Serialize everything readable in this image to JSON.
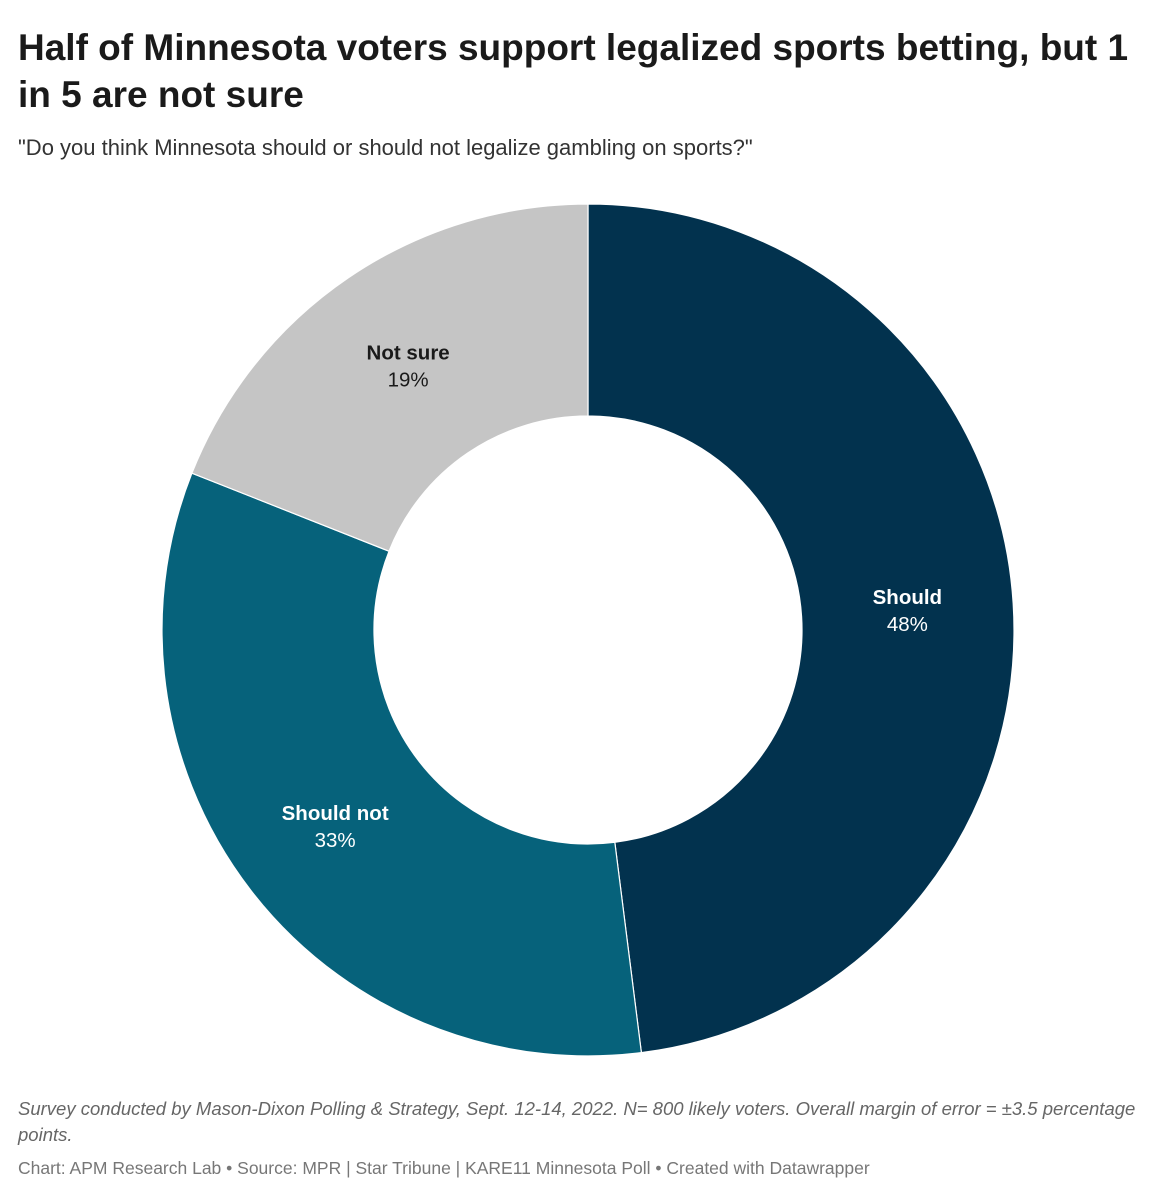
{
  "title": "Half of Minnesota voters support legalized sports betting, but 1 in 5 are not sure",
  "subtitle": "\"Do you think Minnesota should or should not legalize gambling on sports?\"",
  "note": "Survey conducted by Mason-Dixon Polling & Strategy, Sept. 12-14, 2022. N= 800 likely voters. Overall margin of error = ±3.5 percentage points.",
  "credits": "Chart: APM Research Lab • Source: MPR | Star Tribune | KARE11 Minnesota Poll • Created with Datawrapper",
  "chart_data": {
    "type": "pie",
    "variant": "donut",
    "start": "12 o'clock, clockwise",
    "slices": [
      {
        "label": "Should",
        "value": 48,
        "display": "48%",
        "color": "#02324e",
        "label_color": "#ffffff"
      },
      {
        "label": "Should not",
        "value": 33,
        "display": "33%",
        "color": "#06627b",
        "label_color": "#ffffff"
      },
      {
        "label": "Not sure",
        "value": 19,
        "display": "19%",
        "color": "#c5c5c5",
        "label_color": "#1a1a1a"
      }
    ]
  }
}
